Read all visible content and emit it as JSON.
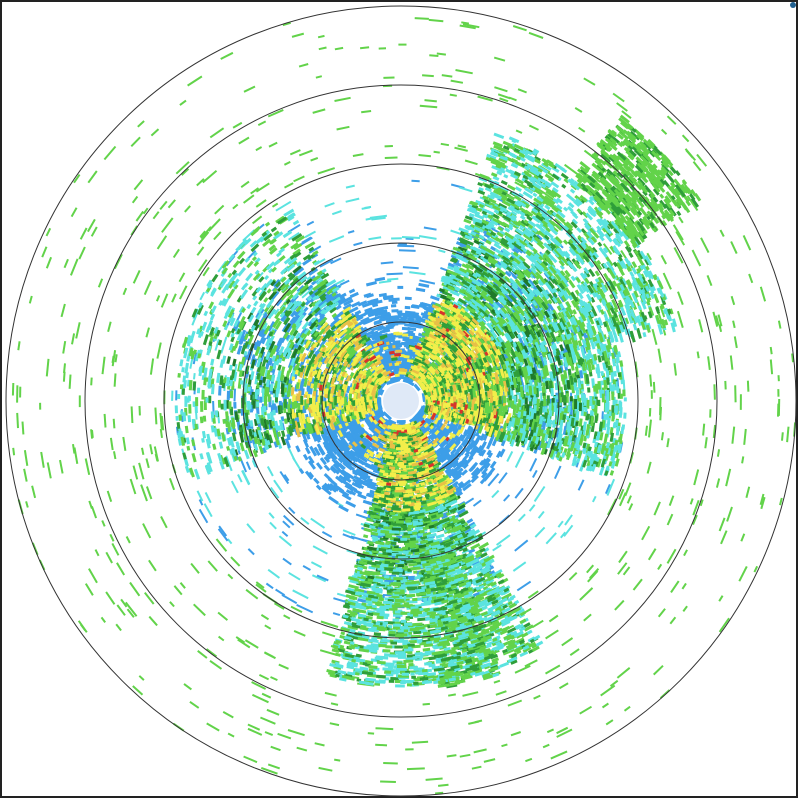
{
  "radar": {
    "ring_count": 5,
    "background": "#ffffff",
    "ring_color": "#333333",
    "frame_color": "#222222",
    "palette": {
      "light_cyan": "#5be3e0",
      "blue": "#3d9ee8",
      "light_green": "#62d34a",
      "green": "#2f9e3a",
      "dark_green": "#1f7a2a",
      "yellow": "#f2ee4a",
      "gold": "#e8c046",
      "red": "#d8332b"
    },
    "sectors": [
      {
        "name": "northeast-band",
        "bearing_from": 20,
        "bearing_to": 75,
        "intensity": "heavy"
      },
      {
        "name": "east-band",
        "bearing_from": 75,
        "bearing_to": 110,
        "intensity": "moderate"
      },
      {
        "name": "south-band",
        "bearing_from": 150,
        "bearing_to": 195,
        "intensity": "heavy"
      },
      {
        "name": "west-core",
        "bearing_from": 250,
        "bearing_to": 330,
        "intensity": "moderate"
      }
    ],
    "sweep_seed": 7
  }
}
